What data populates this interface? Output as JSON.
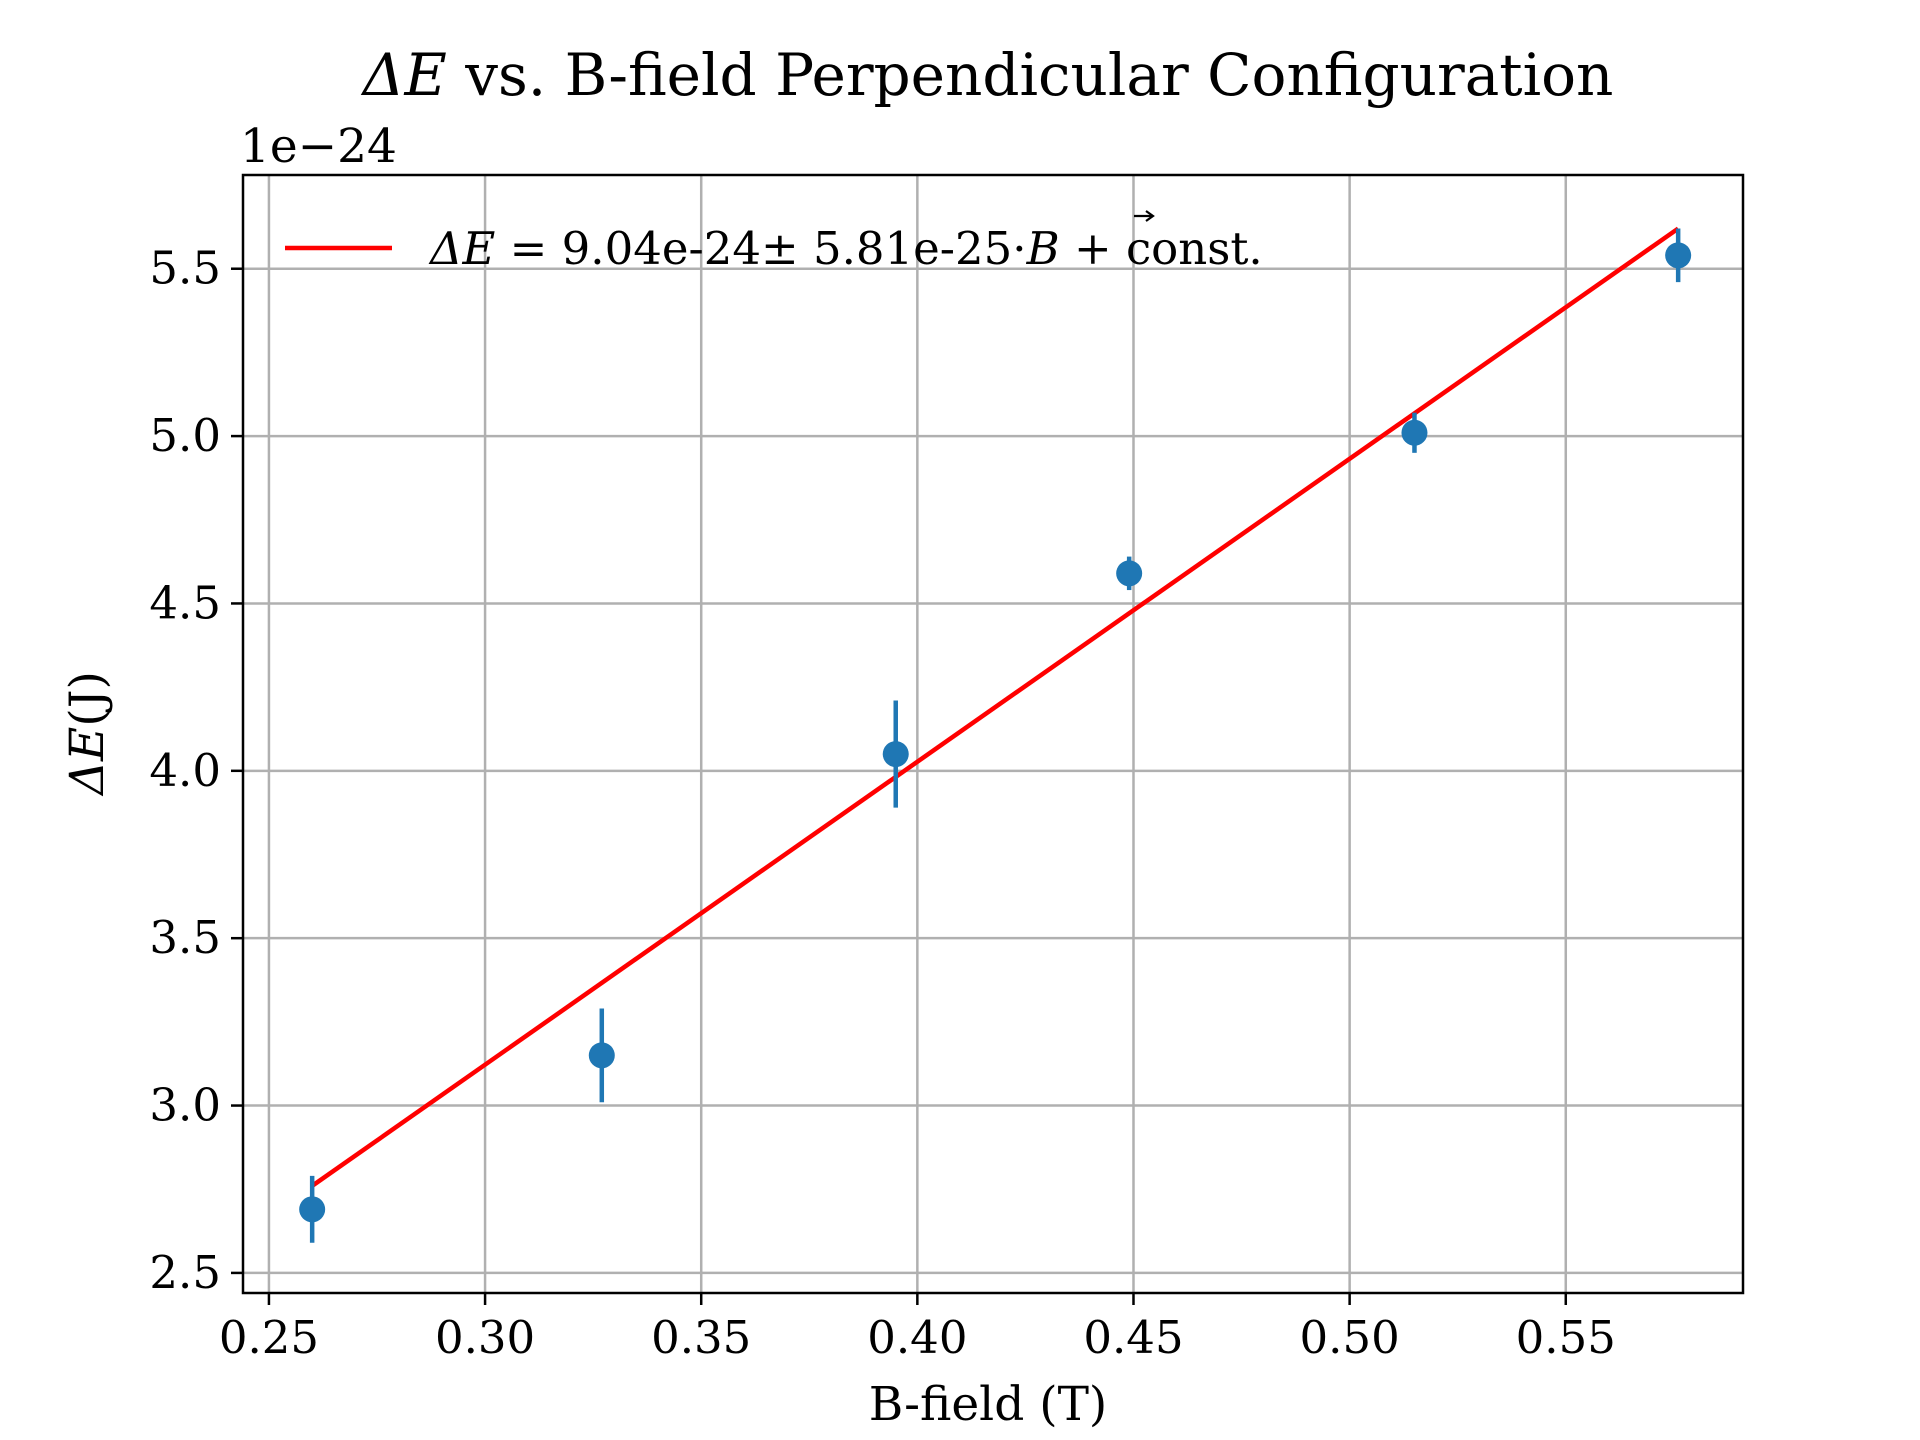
{
  "chart_data": {
    "type": "scatter",
    "title_prefix": "ΔE",
    "title_rest": " vs. B-field Perpendicular Configuration",
    "xlabel": "B-field (T)",
    "ylabel_italic": "ΔE",
    "ylabel_unit": "(J)",
    "y_offset_label": "1e−24",
    "xlim": [
      0.244,
      0.591
    ],
    "ylim": [
      2.44,
      5.78
    ],
    "x_ticks": [
      0.25,
      0.3,
      0.35,
      0.4,
      0.45,
      0.5,
      0.55
    ],
    "x_tick_labels": [
      "0.25",
      "0.30",
      "0.35",
      "0.40",
      "0.45",
      "0.50",
      "0.55"
    ],
    "y_ticks": [
      2.5,
      3.0,
      3.5,
      4.0,
      4.5,
      5.0,
      5.5
    ],
    "y_tick_labels": [
      "2.5",
      "3.0",
      "3.5",
      "4.0",
      "4.5",
      "5.0",
      "5.5"
    ],
    "grid": true,
    "legend_position": "top-left",
    "series": [
      {
        "kind": "errorbar",
        "color": "#1f77b4",
        "x": [
          0.26,
          0.327,
          0.395,
          0.449,
          0.515,
          0.576
        ],
        "y": [
          2.69,
          3.15,
          4.05,
          4.59,
          5.01,
          5.54
        ],
        "yerr": [
          0.1,
          0.14,
          0.16,
          0.05,
          0.06,
          0.08
        ]
      },
      {
        "kind": "line",
        "name": "ΔE =   9.04e-24±  5.81e-25·B⃗ + const.",
        "legend_parts": {
          "italic": "ΔE",
          "value": " =   9.04e-24±  5.81e-25·",
          "vector": "B",
          "suffix": " + const."
        },
        "color": "#ff0000",
        "x": [
          0.26,
          0.576
        ],
        "y": [
          2.76,
          5.62
        ]
      }
    ]
  }
}
